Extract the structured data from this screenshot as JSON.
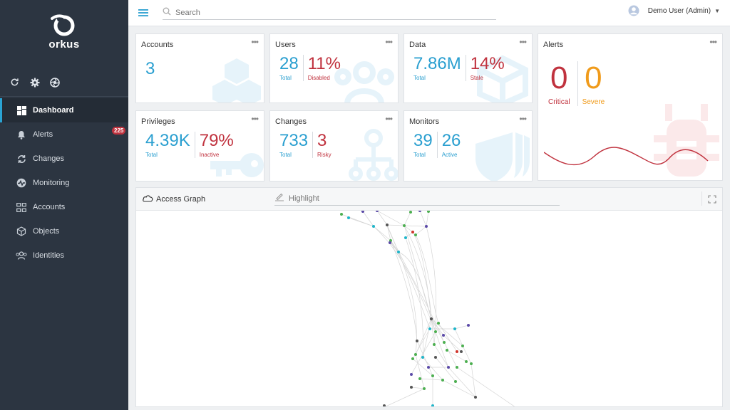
{
  "app": {
    "name": "orkus"
  },
  "sidebar": {
    "tools": [
      {
        "icon": "refresh-icon"
      },
      {
        "icon": "gear-icon"
      },
      {
        "icon": "aperture-icon"
      }
    ],
    "items": [
      {
        "label": "Dashboard",
        "icon": "dashboard-icon",
        "active": true
      },
      {
        "label": "Alerts",
        "icon": "bell-icon",
        "badge": "225"
      },
      {
        "label": "Changes",
        "icon": "sync-icon"
      },
      {
        "label": "Monitoring",
        "icon": "heartbeat-icon"
      },
      {
        "label": "Accounts",
        "icon": "accounts-icon"
      },
      {
        "label": "Objects",
        "icon": "cube-icon"
      },
      {
        "label": "Identities",
        "icon": "users-icon"
      }
    ]
  },
  "topbar": {
    "search_placeholder": "Search",
    "user_name": "Demo User (Admin)"
  },
  "cards": {
    "accounts": {
      "title": "Accounts",
      "value": "3"
    },
    "users": {
      "title": "Users",
      "total": "28",
      "total_label": "Total",
      "disabled": "11%",
      "disabled_label": "Disabled"
    },
    "data": {
      "title": "Data",
      "total": "7.86M",
      "total_label": "Total",
      "stale": "14%",
      "stale_label": "Stale"
    },
    "privileges": {
      "title": "Privileges",
      "total": "4.39K",
      "total_label": "Total",
      "inactive": "79%",
      "inactive_label": "Inactive"
    },
    "changes": {
      "title": "Changes",
      "total": "733",
      "total_label": "Total",
      "risky": "3",
      "risky_label": "Risky"
    },
    "monitors": {
      "title": "Monitors",
      "total": "39",
      "total_label": "Total",
      "active": "26",
      "active_label": "Active"
    },
    "alerts": {
      "title": "Alerts",
      "critical": "0",
      "critical_label": "Critical",
      "severe": "0",
      "severe_label": "Severe"
    }
  },
  "graph": {
    "title": "Access Graph",
    "highlight_placeholder": "Highlight"
  },
  "colors": {
    "accent": "#2a9fd0",
    "danger": "#c0323e",
    "warning": "#f09b1b",
    "sidebar_bg": "#2c3541"
  }
}
